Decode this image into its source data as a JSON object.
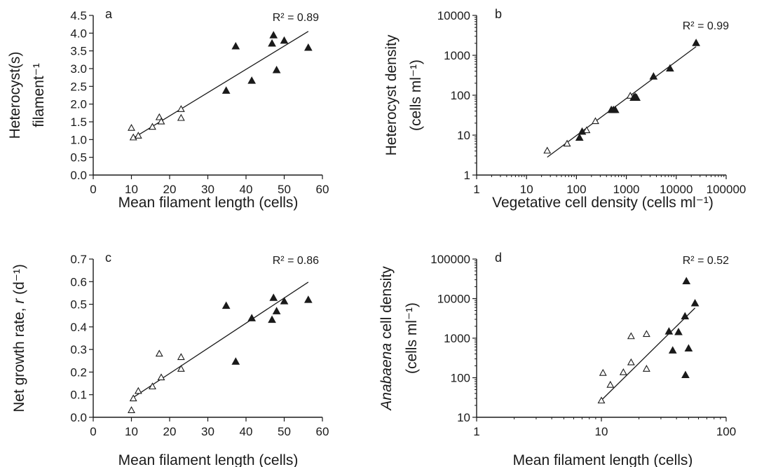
{
  "chart_data": [
    {
      "panel": "a",
      "type": "scatter",
      "xlabel": "Mean filament length (cells)",
      "ylabel_lines": [
        "Heterocyst(s)",
        "filament⁻¹"
      ],
      "r2_label": "R² = 0.89",
      "x_ticks": [
        "0",
        "10",
        "20",
        "30",
        "40",
        "50",
        "60"
      ],
      "y_ticks": [
        "0.0",
        "0.5",
        "1.0",
        "1.5",
        "2.0",
        "2.5",
        "3.0",
        "3.5",
        "4.0",
        "4.5"
      ],
      "xlim": [
        0,
        60
      ],
      "ylim": [
        0,
        4.5
      ],
      "xscale": "linear",
      "yscale": "linear",
      "series": [
        {
          "marker": "open-triangle",
          "points": [
            [
              10.0,
              1.32
            ],
            [
              10.5,
              1.05
            ],
            [
              11.8,
              1.1
            ],
            [
              15.5,
              1.35
            ],
            [
              17.3,
              1.62
            ],
            [
              17.8,
              1.5
            ],
            [
              23.0,
              1.85
            ],
            [
              23.0,
              1.6
            ]
          ]
        },
        {
          "marker": "filled-triangle",
          "points": [
            [
              34.8,
              2.37
            ],
            [
              37.3,
              3.62
            ],
            [
              41.5,
              2.65
            ],
            [
              46.8,
              3.7
            ],
            [
              47.2,
              3.93
            ],
            [
              48.0,
              2.95
            ],
            [
              50.0,
              3.78
            ],
            [
              56.3,
              3.58
            ]
          ]
        }
      ],
      "fit_line": [
        [
          10.3,
          1.03
        ],
        [
          56.3,
          4.05
        ]
      ]
    },
    {
      "panel": "b",
      "type": "scatter",
      "xlabel": "Vegetative cell   density (cells ml⁻¹)",
      "ylabel_lines": [
        "Heterocyst  density",
        "(cells ml⁻¹)"
      ],
      "r2_label": "R² = 0.99",
      "x_ticks": [
        "1",
        "10",
        "100",
        "1000",
        "10000",
        "100000"
      ],
      "y_ticks": [
        "1",
        "10",
        "100",
        "1000",
        "10000"
      ],
      "xlim": [
        1,
        100000
      ],
      "ylim": [
        1,
        10000
      ],
      "xscale": "log",
      "yscale": "log",
      "series": [
        {
          "marker": "open-triangle",
          "points": [
            [
              26,
              4.0
            ],
            [
              65,
              6.0
            ],
            [
              130,
              12
            ],
            [
              160,
              13
            ],
            [
              240,
              22
            ],
            [
              1200,
              95
            ]
          ]
        },
        {
          "marker": "filled-triangle",
          "points": [
            [
              115,
              8.5
            ],
            [
              130,
              12
            ],
            [
              500,
              42
            ],
            [
              550,
              42
            ],
            [
              600,
              42
            ],
            [
              1400,
              85
            ],
            [
              1500,
              90
            ],
            [
              1600,
              85
            ],
            [
              3500,
              290
            ],
            [
              7500,
              460
            ],
            [
              25000,
              2000
            ]
          ]
        }
      ],
      "fit_line": [
        [
          26,
          2.8
        ],
        [
          25000,
          1650
        ]
      ]
    },
    {
      "panel": "c",
      "type": "scatter",
      "xlabel": "Mean filament length (cells)",
      "ylabel_text": "Net  growth rate, ",
      "ylabel_italic": "r",
      "ylabel_suffix": " (d⁻¹)",
      "r2_label": "R² = 0.86",
      "x_ticks": [
        "0",
        "10",
        "20",
        "30",
        "40",
        "50",
        "60"
      ],
      "y_ticks": [
        "0.0",
        "0.1",
        "0.2",
        "0.3",
        "0.4",
        "0.5",
        "0.6",
        "0.7"
      ],
      "xlim": [
        0,
        60
      ],
      "ylim": [
        0,
        0.7
      ],
      "xscale": "linear",
      "yscale": "linear",
      "series": [
        {
          "marker": "open-triangle",
          "points": [
            [
              10.0,
              0.03
            ],
            [
              10.5,
              0.082
            ],
            [
              11.8,
              0.115
            ],
            [
              15.5,
              0.135
            ],
            [
              17.3,
              0.28
            ],
            [
              17.8,
              0.175
            ],
            [
              23.0,
              0.265
            ],
            [
              23.0,
              0.213
            ]
          ]
        },
        {
          "marker": "filled-triangle",
          "points": [
            [
              34.8,
              0.492
            ],
            [
              37.3,
              0.245
            ],
            [
              41.5,
              0.437
            ],
            [
              46.8,
              0.43
            ],
            [
              47.2,
              0.527
            ],
            [
              48.0,
              0.468
            ],
            [
              50.0,
              0.512
            ],
            [
              56.3,
              0.518
            ]
          ]
        }
      ],
      "fit_line": [
        [
          10.5,
          0.088
        ],
        [
          56.3,
          0.598
        ]
      ]
    },
    {
      "panel": "d",
      "type": "scatter",
      "xlabel": "Mean filament length (cells)",
      "ylabel_italic": "Anabaena",
      "ylabel_text": " cell density",
      "ylabel_line2": "(cells ml⁻¹)",
      "r2_label": "R² = 0.52",
      "x_ticks": [
        "1",
        "10",
        "100"
      ],
      "y_ticks": [
        "10",
        "100",
        "1000",
        "10000",
        "100000"
      ],
      "xlim": [
        1,
        100
      ],
      "ylim": [
        10,
        100000
      ],
      "xscale": "log",
      "yscale": "log",
      "series": [
        {
          "marker": "open-triangle",
          "points": [
            [
              10.0,
              26
            ],
            [
              10.3,
              130
            ],
            [
              11.8,
              65
            ],
            [
              15.0,
              135
            ],
            [
              17.3,
              240
            ],
            [
              17.3,
              1100
            ],
            [
              23.0,
              165
            ],
            [
              23.0,
              1250
            ]
          ]
        },
        {
          "marker": "filled-triangle",
          "points": [
            [
              34.8,
              1450
            ],
            [
              37.3,
              480
            ],
            [
              41.5,
              1400
            ],
            [
              46.8,
              3500
            ],
            [
              47.2,
              115
            ],
            [
              48.0,
              27000
            ],
            [
              50.0,
              540
            ],
            [
              56.3,
              7500
            ]
          ]
        }
      ],
      "fit_line": [
        [
          10.0,
          27
        ],
        [
          56.3,
          5800
        ]
      ]
    }
  ]
}
